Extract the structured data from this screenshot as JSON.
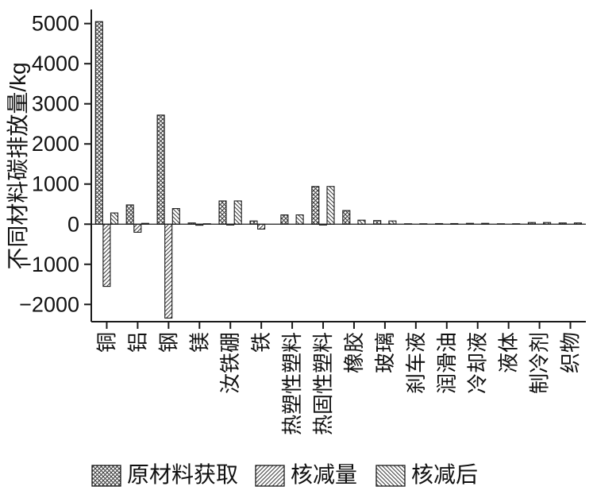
{
  "figure": {
    "title": "",
    "colors": {
      "axis": "#1a1a1a",
      "hatch": "#3a3a3a",
      "background": "#ffffff"
    }
  },
  "legend": {
    "items": [
      {
        "label": "原材料获取",
        "pattern": "cross"
      },
      {
        "label": "核减量",
        "pattern": "forward-diagonal"
      },
      {
        "label": "核减后",
        "pattern": "back-diagonal"
      }
    ]
  },
  "chart_data": {
    "type": "bar",
    "title": "",
    "xlabel": "",
    "ylabel": "不同材料碳排放量/kg",
    "ylim": [
      -2430,
      5350
    ],
    "yticks": [
      5000,
      4000,
      3000,
      2000,
      1000,
      0,
      -1000,
      -2000
    ],
    "ytick_labels": [
      "5000",
      "4000",
      "3000",
      "2000",
      "1000",
      "0",
      "−1000",
      "−2000"
    ],
    "grid": false,
    "legend_position": "bottom",
    "categories": [
      "铜",
      "铝",
      "钢",
      "镁",
      "汝铁硼",
      "铁",
      "热塑性塑料",
      "热固性塑料",
      "橡胶",
      "玻璃",
      "刹车液",
      "润滑油",
      "冷却液",
      "液体",
      "制冷剂",
      "织物"
    ],
    "series": [
      {
        "name": "原材料获取",
        "hatch": "cross",
        "values": [
          5050,
          480,
          2720,
          30,
          580,
          80,
          230,
          940,
          340,
          90,
          10,
          15,
          20,
          10,
          40,
          30
        ]
      },
      {
        "name": "核减量",
        "hatch": "forward-diagonal",
        "values": [
          -1550,
          -200,
          -2340,
          -25,
          -20,
          -120,
          0,
          -20,
          0,
          0,
          0,
          0,
          0,
          0,
          0,
          0
        ]
      },
      {
        "name": "核减后",
        "hatch": "back-diagonal",
        "values": [
          280,
          20,
          390,
          10,
          580,
          0,
          230,
          940,
          100,
          80,
          10,
          15,
          20,
          10,
          40,
          30
        ]
      }
    ]
  }
}
